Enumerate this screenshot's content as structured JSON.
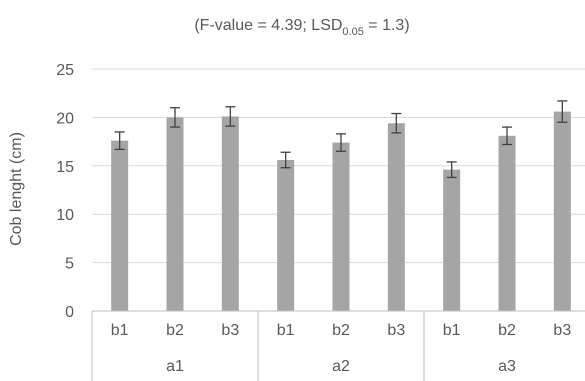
{
  "chart_data": {
    "type": "bar",
    "title": {
      "prefix": "(F-value = 4.39; LSD",
      "subscript": "0.05",
      "suffix": " = 1.3)"
    },
    "xlabel": "",
    "ylabel": "Cob lenght (cm)",
    "ylim": [
      0,
      25
    ],
    "yticks": [
      "0",
      "5",
      "10",
      "15",
      "20",
      "25"
    ],
    "grid": true,
    "groups": [
      {
        "label": "a1",
        "categories": [
          "b1",
          "b2",
          "b3"
        ],
        "values": [
          17.6,
          20.0,
          20.1
        ],
        "errors": [
          0.9,
          1.0,
          1.0
        ]
      },
      {
        "label": "a2",
        "categories": [
          "b1",
          "b2",
          "b3"
        ],
        "values": [
          15.6,
          17.4,
          19.4
        ],
        "errors": [
          0.8,
          0.9,
          1.0
        ]
      },
      {
        "label": "a3",
        "categories": [
          "b1",
          "b2",
          "b3"
        ],
        "values": [
          14.6,
          18.1,
          20.6
        ],
        "errors": [
          0.8,
          0.9,
          1.1
        ]
      }
    ],
    "colors": {
      "bar": "#a5a5a5",
      "error_bar": "#404040",
      "grid": "#d9d9d9",
      "text": "#595959",
      "axis": "#bfbfbf"
    }
  }
}
